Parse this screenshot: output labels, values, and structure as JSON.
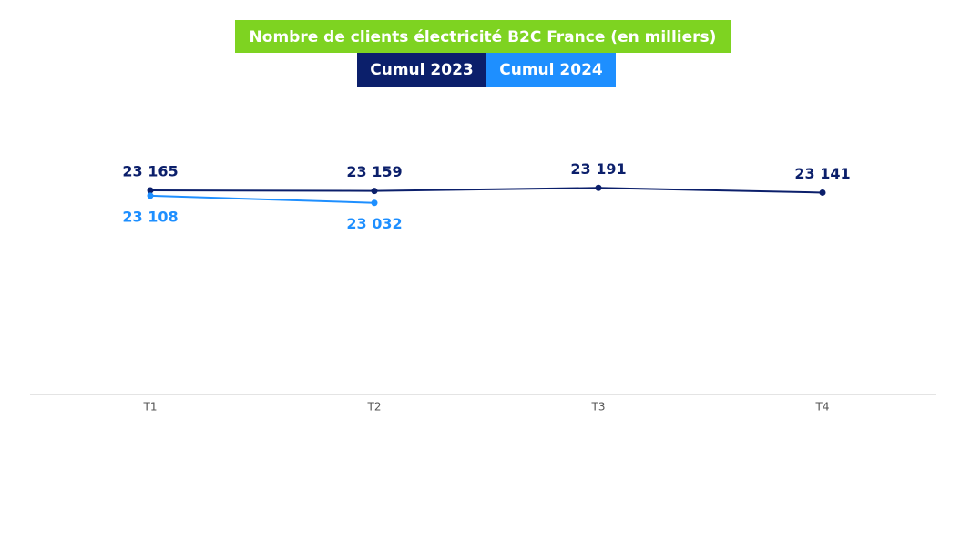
{
  "chart_data": {
    "type": "line",
    "title": "Nombre de clients électricité B2C France (en milliers)",
    "categories": [
      "T1",
      "T2",
      "T3",
      "T4"
    ],
    "series": [
      {
        "name": "Cumul 2023",
        "color": "#0b1f6b",
        "values": [
          23165,
          23159,
          23191,
          23141
        ],
        "value_labels": [
          "23 165",
          "23 159",
          "23 191",
          "23 141"
        ]
      },
      {
        "name": "Cumul 2024",
        "color": "#1e8fff",
        "values": [
          23108,
          23032,
          null,
          null
        ],
        "value_labels": [
          "23 108",
          "23 032",
          null,
          null
        ]
      }
    ],
    "title_color": "#7ed321",
    "ylim": [
      21000,
      23300
    ]
  }
}
